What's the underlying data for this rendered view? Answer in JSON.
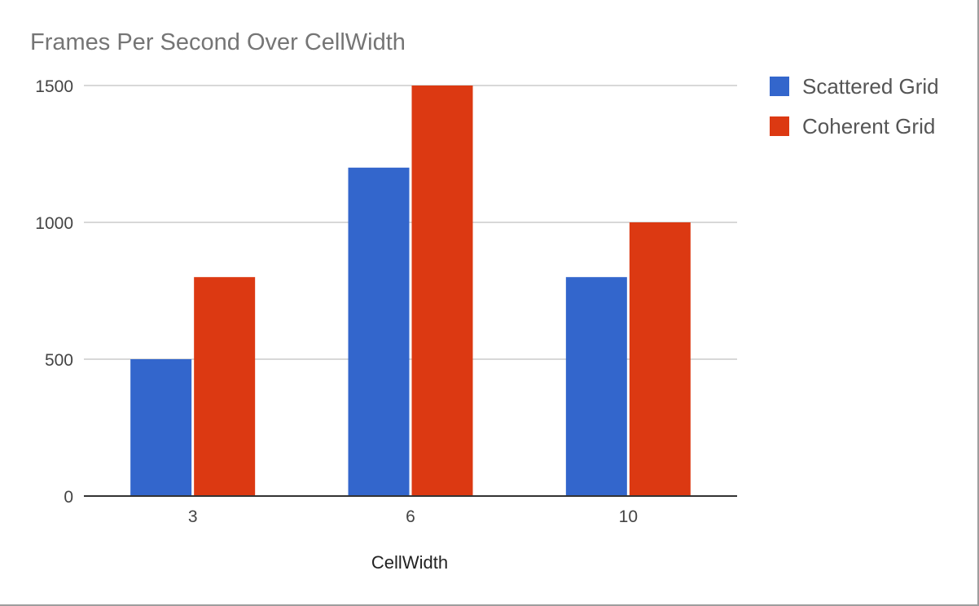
{
  "chart_data": {
    "type": "bar",
    "title": "Frames Per Second Over CellWidth",
    "xlabel": "CellWidth",
    "ylabel": "",
    "categories": [
      "3",
      "6",
      "10"
    ],
    "series": [
      {
        "name": "Scattered Grid",
        "color": "#3366cc",
        "values": [
          500,
          1200,
          800
        ]
      },
      {
        "name": "Coherent Grid",
        "color": "#dc3912",
        "values": [
          800,
          1500,
          1000
        ]
      }
    ],
    "ylim": [
      0,
      1500
    ],
    "yticks": [
      0,
      500,
      1000,
      1500
    ],
    "ytick_labels": [
      "0",
      "500",
      "1000",
      "1500"
    ],
    "grid": true,
    "legend_position": "right"
  }
}
